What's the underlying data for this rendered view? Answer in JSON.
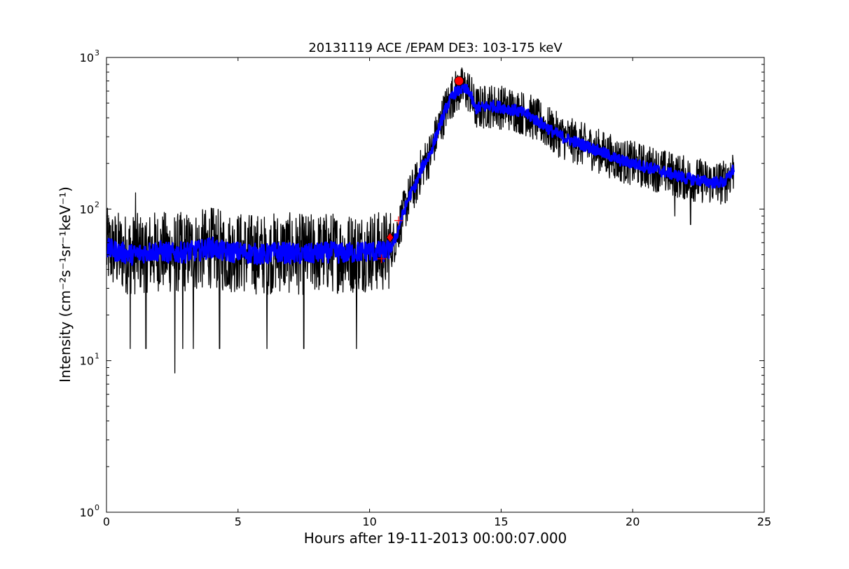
{
  "chart_data": {
    "type": "line",
    "title": "20131119 ACE /EPAM DE3: 103-175 keV",
    "xlabel": "Hours after 19-11-2013 00:00:07.000",
    "ylabel": "Intensity (cm⁻²s⁻¹sr⁻¹keV⁻¹)",
    "xlim": [
      0,
      25
    ],
    "ylim": [
      1,
      1000
    ],
    "yscale": "log",
    "grid": false,
    "xticks": [
      0,
      5,
      10,
      15,
      20,
      25
    ],
    "xtick_labels": [
      "0",
      "5",
      "10",
      "15",
      "20",
      "25"
    ],
    "yticks": [
      1,
      10,
      100,
      1000
    ],
    "ytick_labels": [
      {
        "base": "10",
        "exp": "0"
      },
      {
        "base": "10",
        "exp": "1"
      },
      {
        "base": "10",
        "exp": "2"
      },
      {
        "base": "10",
        "exp": "3"
      }
    ],
    "series": [
      {
        "style": "raw",
        "color": "#000000",
        "x": [
          0,
          0.5,
          1,
          1.5,
          2,
          2.5,
          3,
          3.5,
          4,
          4.5,
          5,
          5.5,
          6,
          6.5,
          7,
          7.5,
          8,
          8.5,
          9,
          9.5,
          10,
          10.5,
          10.8,
          11.0,
          11.2,
          11.5,
          11.8,
          12.0,
          12.3,
          12.6,
          12.9,
          13.2,
          13.5,
          13.8,
          14.0,
          14.3,
          14.6,
          15.0,
          15.5,
          16.0,
          16.5,
          17.0,
          17.5,
          18.0,
          18.5,
          19.0,
          19.5,
          20.0,
          20.5,
          21.0,
          21.5,
          22.0,
          22.5,
          23.0,
          23.5,
          23.85
        ],
        "y": [
          55,
          52,
          50,
          52,
          53,
          51,
          52,
          53,
          56,
          52,
          52,
          51,
          50,
          52,
          51,
          50,
          51,
          52,
          51,
          52,
          53,
          52,
          55,
          65,
          85,
          120,
          150,
          190,
          230,
          330,
          460,
          580,
          620,
          600,
          460,
          470,
          480,
          470,
          450,
          420,
          370,
          320,
          290,
          270,
          250,
          230,
          210,
          200,
          190,
          180,
          170,
          160,
          155,
          150,
          150,
          185
        ],
        "noise": 0.62,
        "spikes": [
          [
            0.9,
            12
          ],
          [
            1.1,
            128
          ],
          [
            1.5,
            12
          ],
          [
            2.6,
            8.3
          ],
          [
            2.9,
            12
          ],
          [
            3.3,
            12
          ],
          [
            4.3,
            12
          ],
          [
            6.1,
            12
          ],
          [
            7.5,
            12
          ],
          [
            9.5,
            12
          ],
          [
            22.2,
            79
          ],
          [
            21.6,
            90
          ]
        ]
      },
      {
        "style": "smoothed",
        "color": "#0000ff",
        "x": [
          0,
          0.5,
          1,
          1.5,
          2,
          2.5,
          3,
          3.5,
          4,
          4.5,
          5,
          5.5,
          6,
          6.5,
          7,
          7.5,
          8,
          8.5,
          9,
          9.5,
          10,
          10.5,
          10.8,
          11.0,
          11.2,
          11.5,
          11.8,
          12.0,
          12.3,
          12.6,
          12.9,
          13.2,
          13.5,
          13.8,
          14.0,
          14.3,
          14.6,
          15.0,
          15.5,
          16.0,
          16.5,
          17.0,
          17.5,
          18.0,
          18.5,
          19.0,
          19.5,
          20.0,
          20.5,
          21.0,
          21.5,
          22.0,
          22.5,
          23.0,
          23.5,
          23.85
        ],
        "y": [
          55,
          52,
          50,
          52,
          53,
          51,
          52,
          53,
          56,
          52,
          52,
          51,
          50,
          52,
          51,
          50,
          51,
          52,
          51,
          52,
          53,
          52,
          55,
          65,
          85,
          120,
          150,
          190,
          230,
          330,
          460,
          580,
          620,
          600,
          460,
          470,
          480,
          470,
          450,
          420,
          370,
          320,
          290,
          270,
          250,
          230,
          210,
          200,
          190,
          180,
          170,
          160,
          155,
          150,
          150,
          185
        ],
        "noise": 0.16
      }
    ],
    "markers": [
      {
        "shape": "plus",
        "x": 10.45,
        "y": 47,
        "color": "#ff0000"
      },
      {
        "shape": "diamond",
        "x": 10.78,
        "y": 65,
        "color": "#ff0000"
      },
      {
        "shape": "plus",
        "x": 11.1,
        "y": 84,
        "color": "#ff0000"
      },
      {
        "shape": "circle",
        "x": 13.4,
        "y": 700,
        "color": "#ff0000"
      }
    ]
  }
}
